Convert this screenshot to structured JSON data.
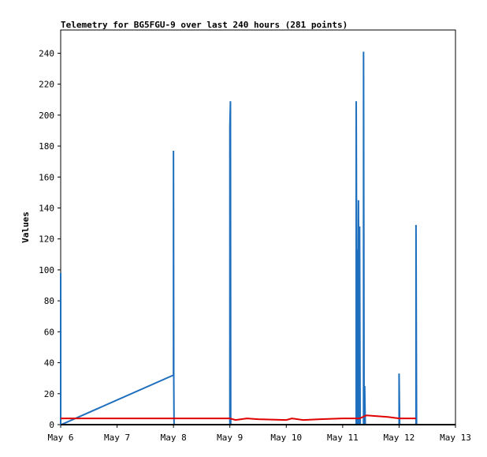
{
  "chart_data": {
    "type": "line",
    "title": "Telemetry for BG5FGU-9 over last 240 hours (281 points)",
    "xlabel": "",
    "ylabel": "Values",
    "xlim": [
      0,
      7
    ],
    "ylim": [
      0,
      255
    ],
    "x_tick_values": [
      0,
      1,
      2,
      3,
      4,
      5,
      6,
      7
    ],
    "x_tick_labels": [
      "May 6",
      "May 7",
      "May 8",
      "May 9",
      "May 10",
      "May 11",
      "May 12",
      "May 13"
    ],
    "y_ticks": [
      0,
      20,
      40,
      60,
      80,
      100,
      120,
      140,
      160,
      180,
      200,
      220,
      240
    ],
    "grid": false,
    "series": [
      {
        "color": "#1f6fbf",
        "points": [
          [
            0.0,
            98
          ],
          [
            0.0,
            0
          ],
          [
            0.01,
            0
          ],
          [
            2.0,
            32
          ],
          [
            2.0,
            177
          ],
          [
            2.005,
            32
          ],
          [
            2.01,
            0
          ],
          [
            3.0,
            0
          ],
          [
            3.0,
            193
          ],
          [
            3.01,
            209
          ],
          [
            3.015,
            0
          ],
          [
            5.24,
            0
          ],
          [
            5.24,
            209
          ],
          [
            5.255,
            0
          ],
          [
            5.26,
            113
          ],
          [
            5.27,
            0
          ],
          [
            5.28,
            145
          ],
          [
            5.29,
            0
          ],
          [
            5.3,
            128
          ],
          [
            5.31,
            0
          ],
          [
            5.37,
            0
          ],
          [
            5.37,
            241
          ],
          [
            5.38,
            0
          ],
          [
            5.39,
            25
          ],
          [
            5.4,
            0
          ],
          [
            6.0,
            0
          ],
          [
            6.0,
            33
          ],
          [
            6.01,
            0
          ],
          [
            6.3,
            0
          ],
          [
            6.3,
            129
          ],
          [
            6.31,
            0
          ]
        ]
      },
      {
        "color": "#e00000",
        "points": [
          [
            0.0,
            4
          ],
          [
            3.0,
            4
          ],
          [
            3.1,
            3
          ],
          [
            3.3,
            4
          ],
          [
            3.5,
            3.5
          ],
          [
            4.0,
            3
          ],
          [
            4.1,
            4
          ],
          [
            4.3,
            3
          ],
          [
            4.6,
            3.5
          ],
          [
            5.0,
            4
          ],
          [
            5.3,
            4
          ],
          [
            5.42,
            6
          ],
          [
            5.8,
            5
          ],
          [
            6.0,
            4
          ],
          [
            6.3,
            4
          ]
        ]
      }
    ]
  }
}
